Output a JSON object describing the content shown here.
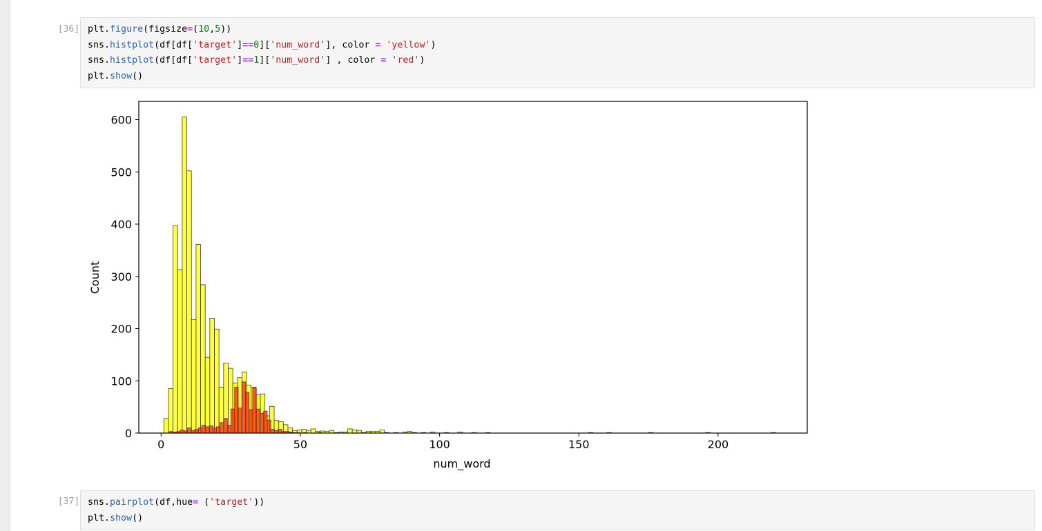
{
  "cells": [
    {
      "prompt": "[36]:",
      "lines": [
        [
          [
            "var",
            "plt"
          ],
          [
            "punc",
            "."
          ],
          [
            "func",
            "figure"
          ],
          [
            "punc",
            "(figsize"
          ],
          [
            "op",
            "="
          ],
          [
            "punc",
            "("
          ],
          [
            "num",
            "10"
          ],
          [
            "punc",
            ","
          ],
          [
            "num",
            "5"
          ],
          [
            "punc",
            "))"
          ]
        ],
        [
          [
            "var",
            "sns"
          ],
          [
            "punc",
            "."
          ],
          [
            "func",
            "histplot"
          ],
          [
            "punc",
            "(df[df["
          ],
          [
            "str",
            "'target'"
          ],
          [
            "punc",
            "]"
          ],
          [
            "op",
            "=="
          ],
          [
            "num",
            "0"
          ],
          [
            "punc",
            "]["
          ],
          [
            "str",
            "'num_word'"
          ],
          [
            "punc",
            "], color "
          ],
          [
            "op",
            "="
          ],
          [
            "punc",
            " "
          ],
          [
            "str",
            "'yellow'"
          ],
          [
            "punc",
            ")"
          ]
        ],
        [
          [
            "var",
            "sns"
          ],
          [
            "punc",
            "."
          ],
          [
            "func",
            "histplot"
          ],
          [
            "punc",
            "(df[df["
          ],
          [
            "str",
            "'target'"
          ],
          [
            "punc",
            "]"
          ],
          [
            "op",
            "=="
          ],
          [
            "num",
            "1"
          ],
          [
            "punc",
            "]["
          ],
          [
            "str",
            "'num_word'"
          ],
          [
            "punc",
            "] , color "
          ],
          [
            "op",
            "="
          ],
          [
            "punc",
            " "
          ],
          [
            "str",
            "'red'"
          ],
          [
            "punc",
            ")"
          ]
        ],
        [
          [
            "var",
            "plt"
          ],
          [
            "punc",
            "."
          ],
          [
            "func",
            "show"
          ],
          [
            "punc",
            "()"
          ]
        ]
      ]
    },
    {
      "prompt": "[37]:",
      "lines": [
        [
          [
            "var",
            "sns"
          ],
          [
            "punc",
            "."
          ],
          [
            "func",
            "pairplot"
          ],
          [
            "punc",
            "(df,hue"
          ],
          [
            "op",
            "="
          ],
          [
            "punc",
            " ("
          ],
          [
            "str",
            "'target'"
          ],
          [
            "punc",
            "))"
          ]
        ],
        [
          [
            "var",
            "plt"
          ],
          [
            "punc",
            "."
          ],
          [
            "func",
            "show"
          ],
          [
            "punc",
            "()"
          ]
        ]
      ]
    }
  ],
  "chart_data": {
    "type": "bar",
    "title": "",
    "xlabel": "num_word",
    "ylabel": "Count",
    "xlim": [
      -8,
      232
    ],
    "ylim": [
      0,
      635
    ],
    "xticks": [
      0,
      50,
      100,
      150,
      200
    ],
    "yticks": [
      0,
      100,
      200,
      300,
      400,
      500,
      600
    ],
    "grid": false,
    "series": [
      {
        "color": "#ffff00",
        "bin_width": 1.65,
        "bins": [
          [
            1.0,
            28
          ],
          [
            2.65,
            85
          ],
          [
            4.3,
            397
          ],
          [
            5.95,
            313
          ],
          [
            7.6,
            605
          ],
          [
            9.25,
            502
          ],
          [
            10.9,
            217
          ],
          [
            12.55,
            361
          ],
          [
            14.2,
            284
          ],
          [
            15.85,
            145
          ],
          [
            17.5,
            220
          ],
          [
            19.15,
            199
          ],
          [
            20.8,
            88
          ],
          [
            22.45,
            134
          ],
          [
            24.1,
            124
          ],
          [
            25.75,
            96
          ],
          [
            27.4,
            106
          ],
          [
            29.05,
            117
          ],
          [
            30.7,
            92
          ],
          [
            32.35,
            88
          ],
          [
            34.0,
            73
          ],
          [
            35.65,
            75
          ],
          [
            37.3,
            33
          ],
          [
            38.95,
            51
          ],
          [
            40.6,
            24
          ],
          [
            42.25,
            22
          ],
          [
            43.9,
            16
          ],
          [
            45.55,
            10
          ],
          [
            47.2,
            5
          ],
          [
            48.85,
            6
          ],
          [
            50.5,
            7
          ],
          [
            52.15,
            5
          ],
          [
            53.8,
            8
          ],
          [
            55.45,
            3
          ],
          [
            57.1,
            4
          ],
          [
            58.75,
            3
          ],
          [
            60.4,
            5
          ],
          [
            62.05,
            1
          ],
          [
            63.7,
            2
          ],
          [
            65.35,
            2
          ],
          [
            67.0,
            8
          ],
          [
            68.65,
            6
          ],
          [
            70.3,
            5
          ],
          [
            71.95,
            1
          ],
          [
            73.6,
            3
          ],
          [
            75.25,
            3
          ],
          [
            76.9,
            3
          ],
          [
            78.55,
            6
          ],
          [
            80.2,
            1
          ],
          [
            83.5,
            1
          ],
          [
            86.8,
            2
          ],
          [
            88.45,
            3
          ],
          [
            90.1,
            1
          ],
          [
            93.4,
            1
          ],
          [
            96.7,
            2
          ],
          [
            101.65,
            1
          ],
          [
            106.6,
            2
          ],
          [
            111.55,
            1
          ],
          [
            116.5,
            1
          ],
          [
            153.4,
            1
          ],
          [
            160.0,
            1
          ],
          [
            175.0,
            1
          ],
          [
            195.5,
            1
          ],
          [
            219.0,
            1
          ]
        ]
      },
      {
        "color": "#ff2a00",
        "bin_width": 1.3,
        "bins": [
          [
            3.0,
            3
          ],
          [
            4.3,
            2
          ],
          [
            5.6,
            3
          ],
          [
            6.9,
            6
          ],
          [
            8.2,
            4
          ],
          [
            9.5,
            10
          ],
          [
            10.8,
            5
          ],
          [
            12.1,
            7
          ],
          [
            13.4,
            10
          ],
          [
            14.7,
            15
          ],
          [
            16.0,
            12
          ],
          [
            17.3,
            14
          ],
          [
            18.6,
            10
          ],
          [
            19.9,
            12
          ],
          [
            21.2,
            20
          ],
          [
            22.5,
            28
          ],
          [
            23.8,
            15
          ],
          [
            25.1,
            46
          ],
          [
            26.4,
            88
          ],
          [
            27.7,
            48
          ],
          [
            29.0,
            98
          ],
          [
            30.3,
            78
          ],
          [
            31.6,
            45
          ],
          [
            32.9,
            87
          ],
          [
            34.2,
            46
          ],
          [
            35.5,
            38
          ],
          [
            36.8,
            42
          ],
          [
            38.1,
            25
          ],
          [
            39.4,
            7
          ],
          [
            40.7,
            5
          ],
          [
            42.0,
            7
          ],
          [
            43.3,
            3
          ],
          [
            44.6,
            3
          ],
          [
            45.9,
            2
          ],
          [
            47.2,
            1
          ],
          [
            48.5,
            1
          ],
          [
            51.1,
            1
          ],
          [
            56.3,
            1
          ]
        ]
      }
    ]
  }
}
